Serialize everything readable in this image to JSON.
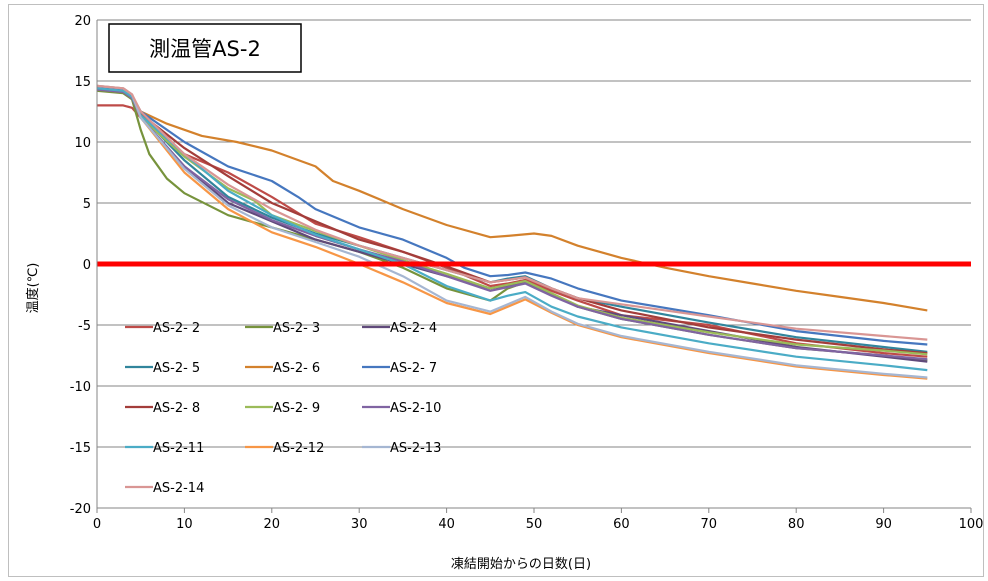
{
  "chart_data": {
    "type": "line",
    "title": "測温管AS-2",
    "xlabel": "凍結開始からの日数(日)",
    "ylabel": "温度(℃)",
    "xlim": [
      0,
      100
    ],
    "ylim": [
      -20,
      20
    ],
    "x_ticks": [
      0,
      10,
      20,
      30,
      40,
      50,
      60,
      70,
      80,
      90,
      100
    ],
    "y_ticks": [
      20,
      15,
      10,
      5,
      0,
      -5,
      -10,
      -15,
      -20
    ],
    "grid": true,
    "legend_position": "lower-left inside plot",
    "reference_line": {
      "y": 0,
      "color": "#ff0000"
    },
    "series": [
      {
        "name": "AS-2- 2",
        "color": "#be4b48",
        "points": [
          [
            0,
            13
          ],
          [
            3,
            13
          ],
          [
            4,
            12.8
          ],
          [
            5,
            12
          ],
          [
            10,
            9
          ],
          [
            15,
            7.5
          ],
          [
            20,
            5.5
          ],
          [
            25,
            3.3
          ],
          [
            30,
            2.2
          ],
          [
            35,
            1
          ],
          [
            40,
            -0.3
          ],
          [
            45,
            -1.8
          ],
          [
            47,
            -1.6
          ],
          [
            49,
            -1.3
          ],
          [
            52,
            -2.2
          ],
          [
            55,
            -3
          ],
          [
            60,
            -4.2
          ],
          [
            70,
            -5
          ],
          [
            80,
            -6.5
          ],
          [
            90,
            -7.3
          ],
          [
            95,
            -7.6
          ]
        ]
      },
      {
        "name": "AS-2- 3",
        "color": "#77933c",
        "points": [
          [
            0,
            14.2
          ],
          [
            3,
            14
          ],
          [
            4,
            13.5
          ],
          [
            5,
            11
          ],
          [
            6,
            9
          ],
          [
            8,
            7
          ],
          [
            10,
            5.8
          ],
          [
            15,
            4
          ],
          [
            20,
            3
          ],
          [
            25,
            2
          ],
          [
            30,
            1
          ],
          [
            35,
            -0.3
          ],
          [
            40,
            -2
          ],
          [
            45,
            -3
          ],
          [
            47,
            -2
          ],
          [
            49,
            -1.5
          ],
          [
            52,
            -2.5
          ],
          [
            55,
            -3.5
          ],
          [
            60,
            -4.5
          ],
          [
            70,
            -5.8
          ],
          [
            80,
            -6.9
          ],
          [
            90,
            -7.5
          ],
          [
            95,
            -7.9
          ]
        ]
      },
      {
        "name": "AS-2- 4",
        "color": "#604a7b",
        "points": [
          [
            0,
            14.3
          ],
          [
            3,
            14.1
          ],
          [
            4,
            13.6
          ],
          [
            5,
            12
          ],
          [
            10,
            8
          ],
          [
            15,
            5
          ],
          [
            20,
            3.5
          ],
          [
            25,
            2
          ],
          [
            30,
            1
          ],
          [
            35,
            0
          ],
          [
            40,
            -1
          ],
          [
            45,
            -2
          ],
          [
            47,
            -1.8
          ],
          [
            49,
            -1.5
          ],
          [
            52,
            -2.5
          ],
          [
            55,
            -3.5
          ],
          [
            60,
            -4.2
          ],
          [
            70,
            -5.5
          ],
          [
            80,
            -6.8
          ],
          [
            90,
            -7.6
          ],
          [
            95,
            -8.0
          ]
        ]
      },
      {
        "name": "AS-2- 5",
        "color": "#31859c",
        "points": [
          [
            0,
            14.4
          ],
          [
            3,
            14.2
          ],
          [
            4,
            13.7
          ],
          [
            5,
            12.2
          ],
          [
            10,
            8.5
          ],
          [
            15,
            5.5
          ],
          [
            20,
            3.8
          ],
          [
            25,
            2.5
          ],
          [
            30,
            1.5
          ],
          [
            35,
            0.5
          ],
          [
            40,
            -0.5
          ],
          [
            45,
            -1.5
          ],
          [
            47,
            -1.2
          ],
          [
            49,
            -1
          ],
          [
            52,
            -2
          ],
          [
            55,
            -2.8
          ],
          [
            60,
            -3.5
          ],
          [
            70,
            -4.8
          ],
          [
            80,
            -6
          ],
          [
            90,
            -6.8
          ],
          [
            95,
            -7.2
          ]
        ]
      },
      {
        "name": "AS-2- 6",
        "color": "#d3812c",
        "points": [
          [
            0,
            14.5
          ],
          [
            3,
            14.3
          ],
          [
            4,
            13.8
          ],
          [
            5,
            12.5
          ],
          [
            8,
            11.5
          ],
          [
            12,
            10.5
          ],
          [
            16,
            10
          ],
          [
            20,
            9.3
          ],
          [
            25,
            8
          ],
          [
            27,
            6.8
          ],
          [
            30,
            6
          ],
          [
            35,
            4.5
          ],
          [
            40,
            3.2
          ],
          [
            45,
            2.2
          ],
          [
            47,
            2.3
          ],
          [
            50,
            2.5
          ],
          [
            52,
            2.3
          ],
          [
            55,
            1.5
          ],
          [
            60,
            0.5
          ],
          [
            65,
            -0.3
          ],
          [
            70,
            -1
          ],
          [
            75,
            -1.6
          ],
          [
            80,
            -2.2
          ],
          [
            85,
            -2.7
          ],
          [
            90,
            -3.2
          ],
          [
            95,
            -3.8
          ]
        ]
      },
      {
        "name": "AS-2- 7",
        "color": "#4677bf",
        "points": [
          [
            0,
            14.5
          ],
          [
            3,
            14.3
          ],
          [
            4,
            13.8
          ],
          [
            5,
            12.5
          ],
          [
            10,
            10
          ],
          [
            15,
            8
          ],
          [
            20,
            6.8
          ],
          [
            23,
            5.5
          ],
          [
            25,
            4.5
          ],
          [
            30,
            3
          ],
          [
            35,
            2
          ],
          [
            40,
            0.5
          ],
          [
            42,
            -0.3
          ],
          [
            45,
            -1
          ],
          [
            47,
            -0.9
          ],
          [
            49,
            -0.7
          ],
          [
            52,
            -1.2
          ],
          [
            55,
            -2
          ],
          [
            60,
            -3
          ],
          [
            70,
            -4.2
          ],
          [
            80,
            -5.5
          ],
          [
            90,
            -6.3
          ],
          [
            95,
            -6.6
          ]
        ]
      },
      {
        "name": "AS-2- 8",
        "color": "#a33d3a",
        "points": [
          [
            0,
            14.3
          ],
          [
            3,
            14.1
          ],
          [
            4,
            13.6
          ],
          [
            5,
            12.3
          ],
          [
            10,
            9.5
          ],
          [
            15,
            7.2
          ],
          [
            20,
            5
          ],
          [
            25,
            3.5
          ],
          [
            30,
            2
          ],
          [
            35,
            1
          ],
          [
            40,
            -0.2
          ],
          [
            45,
            -1.5
          ],
          [
            47,
            -1.3
          ],
          [
            49,
            -1.1
          ],
          [
            52,
            -2
          ],
          [
            55,
            -2.8
          ],
          [
            60,
            -3.8
          ],
          [
            70,
            -5.2
          ],
          [
            80,
            -6.2
          ],
          [
            90,
            -7
          ],
          [
            95,
            -7.3
          ]
        ]
      },
      {
        "name": "AS-2- 9",
        "color": "#9bbb59",
        "points": [
          [
            0,
            14.3
          ],
          [
            3,
            14.1
          ],
          [
            4,
            13.6
          ],
          [
            5,
            12
          ],
          [
            10,
            8.8
          ],
          [
            15,
            6.2
          ],
          [
            18,
            5.2
          ],
          [
            20,
            4
          ],
          [
            25,
            2.7
          ],
          [
            30,
            1.5
          ],
          [
            35,
            0.3
          ],
          [
            40,
            -0.8
          ],
          [
            45,
            -2
          ],
          [
            47,
            -1.7
          ],
          [
            49,
            -1.4
          ],
          [
            52,
            -2.4
          ],
          [
            55,
            -3.4
          ],
          [
            60,
            -4.4
          ],
          [
            70,
            -5.6
          ],
          [
            80,
            -6.6
          ],
          [
            90,
            -7.1
          ],
          [
            95,
            -7.4
          ]
        ]
      },
      {
        "name": "AS-2-10",
        "color": "#8064a2",
        "points": [
          [
            0,
            14.3
          ],
          [
            3,
            14.1
          ],
          [
            4,
            13.6
          ],
          [
            5,
            12
          ],
          [
            10,
            8
          ],
          [
            15,
            5.3
          ],
          [
            20,
            3.6
          ],
          [
            25,
            2.3
          ],
          [
            30,
            1.2
          ],
          [
            35,
            0.2
          ],
          [
            40,
            -1
          ],
          [
            45,
            -2.2
          ],
          [
            47,
            -1.9
          ],
          [
            49,
            -1.6
          ],
          [
            52,
            -2.6
          ],
          [
            55,
            -3.5
          ],
          [
            60,
            -4.5
          ],
          [
            70,
            -5.8
          ],
          [
            80,
            -6.9
          ],
          [
            90,
            -7.5
          ],
          [
            95,
            -7.8
          ]
        ]
      },
      {
        "name": "AS-2-11",
        "color": "#4bacc6",
        "points": [
          [
            0,
            14.4
          ],
          [
            3,
            14.2
          ],
          [
            4,
            13.7
          ],
          [
            5,
            12.2
          ],
          [
            10,
            9
          ],
          [
            15,
            6
          ],
          [
            20,
            4
          ],
          [
            25,
            2.4
          ],
          [
            30,
            1.2
          ],
          [
            35,
            0
          ],
          [
            40,
            -1.8
          ],
          [
            45,
            -3
          ],
          [
            47,
            -2.6
          ],
          [
            49,
            -2.3
          ],
          [
            52,
            -3.5
          ],
          [
            55,
            -4.3
          ],
          [
            60,
            -5.2
          ],
          [
            70,
            -6.5
          ],
          [
            80,
            -7.6
          ],
          [
            90,
            -8.3
          ],
          [
            95,
            -8.7
          ]
        ]
      },
      {
        "name": "AS-2-12",
        "color": "#f79646",
        "points": [
          [
            0,
            14.6
          ],
          [
            3,
            14.4
          ],
          [
            4,
            13.9
          ],
          [
            5,
            12
          ],
          [
            10,
            7.5
          ],
          [
            15,
            4.5
          ],
          [
            20,
            2.6
          ],
          [
            25,
            1.4
          ],
          [
            30,
            0
          ],
          [
            35,
            -1.5
          ],
          [
            40,
            -3.2
          ],
          [
            45,
            -4.1
          ],
          [
            47,
            -3.5
          ],
          [
            49,
            -2.9
          ],
          [
            52,
            -4
          ],
          [
            55,
            -5
          ],
          [
            60,
            -6
          ],
          [
            70,
            -7.3
          ],
          [
            80,
            -8.4
          ],
          [
            90,
            -9.1
          ],
          [
            95,
            -9.4
          ]
        ]
      },
      {
        "name": "AS-2-13",
        "color": "#a5b6d2",
        "points": [
          [
            0,
            14.6
          ],
          [
            3,
            14.4
          ],
          [
            4,
            13.9
          ],
          [
            5,
            12
          ],
          [
            10,
            7.8
          ],
          [
            15,
            4.8
          ],
          [
            20,
            3
          ],
          [
            25,
            1.8
          ],
          [
            30,
            0.6
          ],
          [
            35,
            -1
          ],
          [
            40,
            -3
          ],
          [
            45,
            -3.9
          ],
          [
            47,
            -3.3
          ],
          [
            49,
            -2.7
          ],
          [
            52,
            -3.9
          ],
          [
            55,
            -4.9
          ],
          [
            60,
            -5.9
          ],
          [
            70,
            -7.2
          ],
          [
            80,
            -8.3
          ],
          [
            90,
            -9
          ],
          [
            95,
            -9.3
          ]
        ]
      },
      {
        "name": "AS-2-14",
        "color": "#d99694",
        "points": [
          [
            0,
            14.6
          ],
          [
            3,
            14.4
          ],
          [
            4,
            13.9
          ],
          [
            5,
            12.5
          ],
          [
            10,
            9
          ],
          [
            15,
            6.5
          ],
          [
            20,
            4.5
          ],
          [
            25,
            2.8
          ],
          [
            30,
            1.5
          ],
          [
            35,
            0.5
          ],
          [
            40,
            -0.5
          ],
          [
            45,
            -1.5
          ],
          [
            47,
            -1.3
          ],
          [
            49,
            -1.1
          ],
          [
            52,
            -2
          ],
          [
            55,
            -2.8
          ],
          [
            60,
            -3.3
          ],
          [
            70,
            -4.3
          ],
          [
            80,
            -5.3
          ],
          [
            90,
            -5.9
          ],
          [
            95,
            -6.2
          ]
        ]
      }
    ]
  }
}
